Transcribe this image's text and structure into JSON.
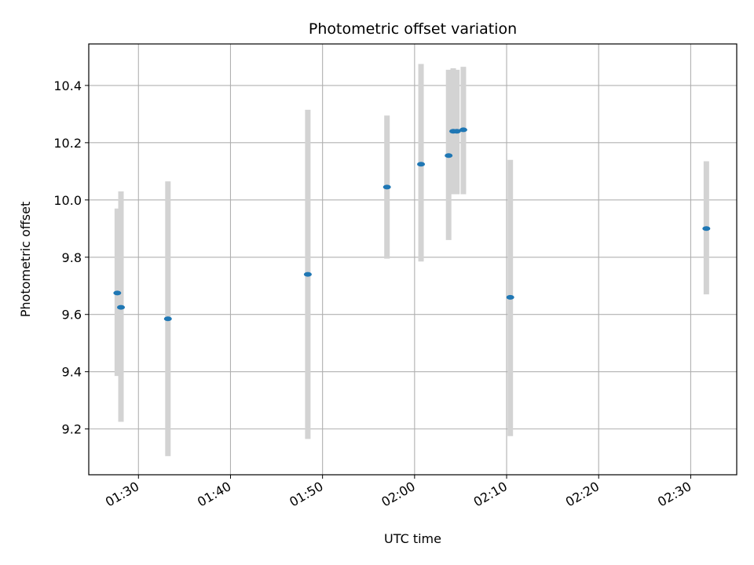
{
  "chart_data": {
    "type": "scatter",
    "title": "Photometric offset variation",
    "xlabel": "UTC time",
    "ylabel": "Photometric offset",
    "x_tick_labels": [
      "01:30",
      "01:40",
      "01:50",
      "02:00",
      "02:10",
      "02:20",
      "02:30"
    ],
    "x_ticks_minutes": [
      90,
      100,
      110,
      120,
      130,
      140,
      150
    ],
    "xlim_minutes": [
      84.6,
      155.0
    ],
    "y_ticks": [
      9.2,
      9.4,
      9.6,
      9.8,
      10.0,
      10.2,
      10.4
    ],
    "ylim": [
      9.04,
      10.545
    ],
    "grid": true,
    "point_color": "#1f77b4",
    "errorbar_color": "#d3d3d3",
    "points": [
      {
        "time": "01:27:42",
        "y": 9.675,
        "low": 9.385,
        "high": 9.97
      },
      {
        "time": "01:28:06",
        "y": 9.625,
        "low": 9.225,
        "high": 10.03
      },
      {
        "time": "01:33:12",
        "y": 9.585,
        "low": 9.105,
        "high": 10.065
      },
      {
        "time": "01:48:24",
        "y": 9.74,
        "low": 9.165,
        "high": 10.315
      },
      {
        "time": "01:57:00",
        "y": 10.045,
        "low": 9.795,
        "high": 10.295
      },
      {
        "time": "02:00:42",
        "y": 10.125,
        "low": 9.785,
        "high": 10.475
      },
      {
        "time": "02:03:42",
        "y": 10.155,
        "low": 9.86,
        "high": 10.455
      },
      {
        "time": "02:04:12",
        "y": 10.24,
        "low": 10.02,
        "high": 10.46
      },
      {
        "time": "02:04:36",
        "y": 10.24,
        "low": 10.02,
        "high": 10.455
      },
      {
        "time": "02:05:18",
        "y": 10.245,
        "low": 10.02,
        "high": 10.465
      },
      {
        "time": "02:10:24",
        "y": 9.66,
        "low": 9.175,
        "high": 10.14
      },
      {
        "time": "02:31:42",
        "y": 9.9,
        "low": 9.67,
        "high": 10.135
      }
    ]
  }
}
